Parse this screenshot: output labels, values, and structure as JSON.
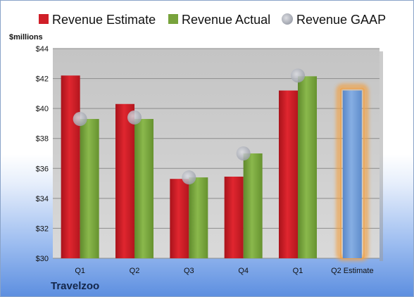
{
  "chart_data": {
    "type": "bar",
    "unit_label": "$millions",
    "company": "Travelzoo",
    "categories": [
      "Q1",
      "Q2",
      "Q3",
      "Q4",
      "Q1",
      "Q2 Estimate"
    ],
    "ylim": [
      30,
      44
    ],
    "yticks": [
      "$30",
      "$32",
      "$34",
      "$36",
      "$38",
      "$40",
      "$42",
      "$44"
    ],
    "grid": true,
    "legend_position": "top",
    "series": [
      {
        "name": "Revenue Estimate",
        "type": "bar",
        "color": "#d01f28",
        "values": [
          42.2,
          40.3,
          35.3,
          35.45,
          41.2,
          null
        ]
      },
      {
        "name": "Revenue Actual",
        "type": "bar",
        "color": "#78a33c",
        "values": [
          39.3,
          39.3,
          35.4,
          37.0,
          42.15,
          41.2
        ]
      },
      {
        "name": "Revenue GAAP",
        "type": "marker",
        "color": "#b9bcc4",
        "values": [
          39.3,
          39.4,
          35.4,
          37.0,
          42.2,
          null
        ]
      }
    ],
    "highlight": {
      "category_index": 5,
      "color": "#6e9bd6",
      "glow": "#f0a34a"
    }
  }
}
